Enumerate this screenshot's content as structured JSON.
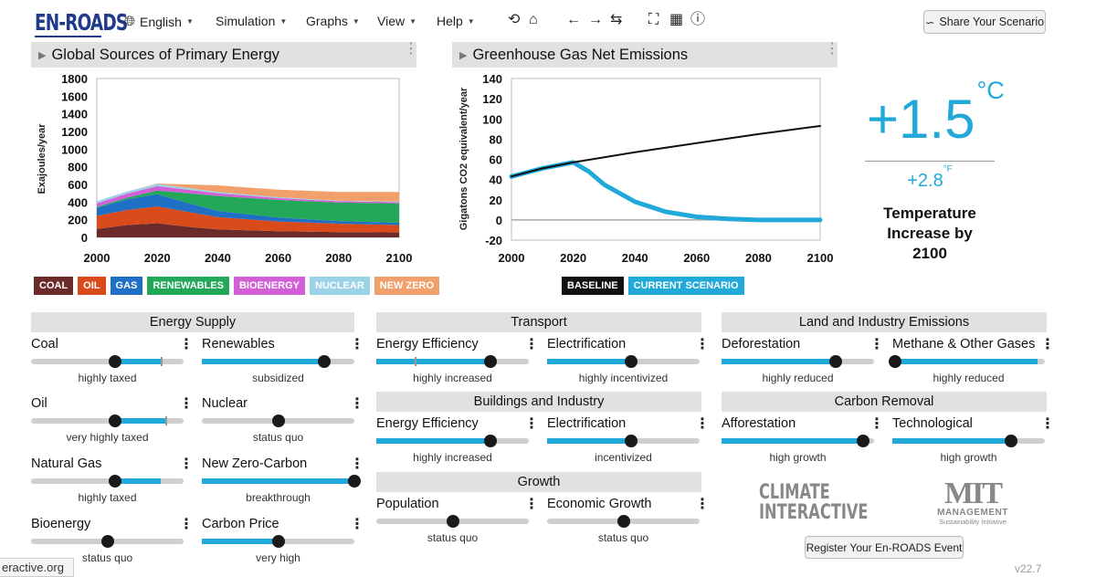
{
  "app": {
    "logo": "EN-ROADS",
    "menus": [
      {
        "label": "English"
      },
      {
        "label": "Simulation"
      },
      {
        "label": "Graphs"
      },
      {
        "label": "View"
      },
      {
        "label": "Help"
      }
    ],
    "share_label": "Share Your Scenario",
    "register_label": "Register Your En-ROADS Event",
    "version": "v22.7",
    "status_url": "eractive.org"
  },
  "graph_left": {
    "title": "Global Sources of Primary Energy",
    "ylabel": "Exajoules/year",
    "legend": [
      {
        "label": "COAL",
        "color": "#6b2b2b"
      },
      {
        "label": "OIL",
        "color": "#d94b1b"
      },
      {
        "label": "GAS",
        "color": "#1f6fc4"
      },
      {
        "label": "RENEWABLES",
        "color": "#23a85a"
      },
      {
        "label": "BIOENERGY",
        "color": "#d25fd6"
      },
      {
        "label": "NUCLEAR",
        "color": "#9ad2e8"
      },
      {
        "label": "NEW ZERO",
        "color": "#f2a06b"
      }
    ]
  },
  "graph_right": {
    "title": "Greenhouse Gas Net Emissions",
    "ylabel": "Gigatons CO2 equivalent/year",
    "legend": [
      {
        "label": "BASELINE",
        "color": "#111111"
      },
      {
        "label": "CURRENT SCENARIO",
        "color": "#21a9d9"
      }
    ]
  },
  "chart_data": [
    {
      "type": "area",
      "title": "Global Sources of Primary Energy",
      "ylabel": "Exajoules/year",
      "x": [
        2000,
        2010,
        2020,
        2030,
        2040,
        2060,
        2080,
        2100
      ],
      "xticks": [
        2000,
        2020,
        2040,
        2060,
        2080,
        2100
      ],
      "yticks": [
        0,
        200,
        400,
        600,
        800,
        1000,
        1200,
        1400,
        1600,
        1800
      ],
      "ylim": [
        0,
        1800
      ],
      "xlim": [
        2000,
        2100
      ],
      "stacked": true,
      "series": [
        {
          "name": "COAL",
          "color": "#6b2b2b",
          "values": [
            95,
            140,
            160,
            120,
            90,
            70,
            60,
            55
          ]
        },
        {
          "name": "OIL",
          "color": "#d94b1b",
          "values": [
            150,
            170,
            190,
            170,
            140,
            110,
            95,
            85
          ]
        },
        {
          "name": "GAS",
          "color": "#1f6fc4",
          "values": [
            90,
            120,
            140,
            100,
            70,
            45,
            30,
            25
          ]
        },
        {
          "name": "RENEWABLES",
          "color": "#23a85a",
          "values": [
            10,
            20,
            40,
            110,
            170,
            200,
            210,
            220
          ]
        },
        {
          "name": "BIOENERGY",
          "color": "#d25fd6",
          "values": [
            40,
            45,
            50,
            40,
            30,
            20,
            15,
            15
          ]
        },
        {
          "name": "NUCLEAR",
          "color": "#9ad2e8",
          "values": [
            25,
            25,
            25,
            20,
            15,
            10,
            5,
            5
          ]
        },
        {
          "name": "NEW ZERO",
          "color": "#f2a06b",
          "values": [
            0,
            0,
            5,
            40,
            75,
            85,
            100,
            110
          ]
        }
      ]
    },
    {
      "type": "line",
      "title": "Greenhouse Gas Net Emissions",
      "ylabel": "Gigatons CO2 equivalent/year",
      "xticks": [
        2000,
        2020,
        2040,
        2060,
        2080,
        2100
      ],
      "yticks": [
        -20,
        0,
        20,
        40,
        60,
        80,
        100,
        120,
        140
      ],
      "ylim": [
        -20,
        140
      ],
      "xlim": [
        2000,
        2100
      ],
      "series": [
        {
          "name": "BASELINE",
          "color": "#111111",
          "x": [
            2000,
            2005,
            2010,
            2015,
            2020,
            2040,
            2060,
            2080,
            2100
          ],
          "values": [
            43,
            47,
            51,
            54,
            57,
            67,
            76,
            85,
            93
          ]
        },
        {
          "name": "CURRENT SCENARIO",
          "color": "#21a9d9",
          "x": [
            2000,
            2005,
            2010,
            2015,
            2020,
            2025,
            2030,
            2040,
            2050,
            2060,
            2070,
            2080,
            2090,
            2100
          ],
          "values": [
            43,
            47,
            51,
            54,
            57,
            48,
            35,
            18,
            8,
            3,
            1,
            0,
            0,
            0
          ]
        }
      ]
    }
  ],
  "temperature": {
    "celsius": "+1.5",
    "c_unit": "°C",
    "fahrenheit": "+2.8",
    "f_unit": "°F",
    "label_line1": "Temperature",
    "label_line2": "Increase by",
    "label_line3": "2100"
  },
  "sections": [
    {
      "title": "Energy Supply"
    },
    {
      "title": "Transport"
    },
    {
      "title": "Land and Industry Emissions"
    },
    {
      "title": "Buildings and Industry"
    },
    {
      "title": "Carbon Removal"
    },
    {
      "title": "Growth"
    }
  ],
  "sliders": [
    {
      "label": "Coal",
      "status": "highly taxed",
      "level": 0.55
    },
    {
      "label": "Renewables",
      "status": "subsidized",
      "level": 0.8
    },
    {
      "label": "Oil",
      "status": "very highly taxed",
      "level": 0.55
    },
    {
      "label": "Nuclear",
      "status": "status quo",
      "level": 0.5
    },
    {
      "label": "Natural Gas",
      "status": "highly taxed",
      "level": 0.55
    },
    {
      "label": "New Zero-Carbon",
      "status": "breakthrough",
      "level": 1.0
    },
    {
      "label": "Bioenergy",
      "status": "status quo",
      "level": 0.5
    },
    {
      "label": "Carbon Price",
      "status": "very high",
      "level": 0.5
    },
    {
      "label": "Energy Efficiency",
      "status": "highly increased",
      "level": 0.75
    },
    {
      "label": "Electrification",
      "status": "highly incentivized",
      "level": 0.55
    },
    {
      "label": "Energy Efficiency",
      "status": "highly increased",
      "level": 0.75
    },
    {
      "label": "Electrification",
      "status": "incentivized",
      "level": 0.55
    },
    {
      "label": "Population",
      "status": "status quo",
      "level": 0.5
    },
    {
      "label": "Economic Growth",
      "status": "status quo",
      "level": 0.5
    },
    {
      "label": "Deforestation",
      "status": "highly reduced",
      "level": 0.75
    },
    {
      "label": "Methane & Other Gases",
      "status": "highly reduced",
      "level": 0.02
    },
    {
      "label": "Afforestation",
      "status": "high growth",
      "level": 0.93
    },
    {
      "label": "Technological",
      "status": "high growth",
      "level": 0.78
    }
  ],
  "logos": {
    "ci_line1": "CLIMATE",
    "ci_line2": "INTERACTIVE",
    "mit": "MIT",
    "mit_sub1": "MANAGEMENT",
    "mit_sub2": "Sustainability Initiative"
  }
}
